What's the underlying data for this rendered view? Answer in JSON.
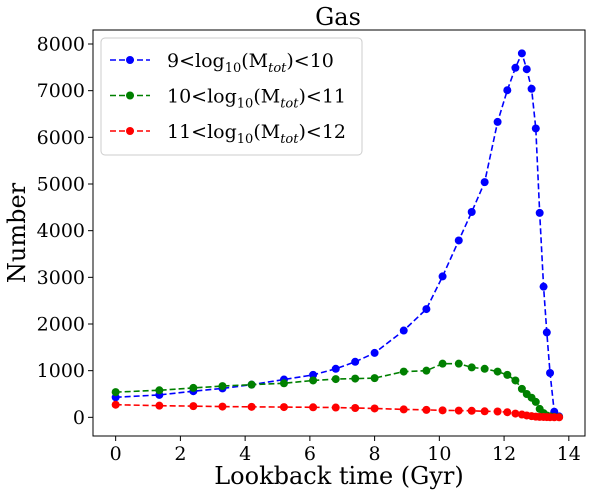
{
  "chart_data": {
    "type": "line",
    "title": "Gas",
    "xlabel": "Lookback time (Gyr)",
    "ylabel": "Number",
    "xlim": [
      -0.7,
      14.5
    ],
    "ylim": [
      -400,
      8300
    ],
    "xticks": [
      0,
      2,
      4,
      6,
      8,
      10,
      12,
      14
    ],
    "yticks": [
      0,
      1000,
      2000,
      3000,
      4000,
      5000,
      6000,
      7000,
      8000
    ],
    "legend_position": "top-left",
    "grid": false,
    "series": [
      {
        "name": "9<log10(Mtot)<10",
        "legend": {
          "prefix": "9<log",
          "sub": "10",
          "mid": "(M",
          "sub2": "tot",
          "suffix": ")<10"
        },
        "color": "#0000ff",
        "x": [
          0.0,
          1.35,
          2.4,
          3.3,
          4.2,
          5.2,
          6.1,
          6.8,
          7.4,
          8.0,
          8.9,
          9.6,
          10.1,
          10.6,
          11.0,
          11.4,
          11.8,
          12.1,
          12.35,
          12.55,
          12.7,
          12.85,
          12.98,
          13.1,
          13.22,
          13.32,
          13.42,
          13.55,
          13.7
        ],
        "y": [
          430,
          480,
          560,
          620,
          700,
          810,
          910,
          1040,
          1190,
          1380,
          1860,
          2320,
          3020,
          3790,
          4400,
          5040,
          6330,
          7010,
          7490,
          7800,
          7460,
          7040,
          6190,
          4380,
          2800,
          1820,
          950,
          120,
          20
        ]
      },
      {
        "name": "10<log10(Mtot)<11",
        "legend": {
          "prefix": "10<log",
          "sub": "10",
          "mid": "(M",
          "sub2": "tot",
          "suffix": ")<11"
        },
        "color": "#008000",
        "x": [
          0.0,
          1.35,
          2.4,
          3.3,
          4.2,
          5.2,
          6.1,
          6.8,
          7.4,
          8.0,
          8.9,
          9.6,
          10.1,
          10.6,
          11.0,
          11.4,
          11.8,
          12.1,
          12.35,
          12.55,
          12.7,
          12.85,
          12.98,
          13.1,
          13.22,
          13.32,
          13.42,
          13.55,
          13.7
        ],
        "y": [
          540,
          580,
          630,
          670,
          700,
          730,
          790,
          820,
          830,
          840,
          980,
          1000,
          1150,
          1150,
          1070,
          1040,
          980,
          910,
          790,
          610,
          500,
          420,
          330,
          180,
          90,
          40,
          20,
          10,
          5
        ]
      },
      {
        "name": "11<log10(Mtot)<12",
        "legend": {
          "prefix": "11<log",
          "sub": "10",
          "mid": "(M",
          "sub2": "tot",
          "suffix": ")<12"
        },
        "color": "#ff0000",
        "x": [
          0.0,
          1.35,
          2.4,
          3.3,
          4.2,
          5.2,
          6.1,
          6.8,
          7.4,
          8.0,
          8.9,
          9.6,
          10.1,
          10.6,
          11.0,
          11.4,
          11.8,
          12.1,
          12.35,
          12.55,
          12.7,
          12.85,
          12.98,
          13.1,
          13.22,
          13.32,
          13.42,
          13.55,
          13.7
        ],
        "y": [
          270,
          250,
          240,
          230,
          225,
          220,
          215,
          210,
          200,
          190,
          170,
          160,
          150,
          145,
          140,
          130,
          125,
          110,
          80,
          60,
          40,
          25,
          15,
          10,
          8,
          5,
          3,
          2,
          1
        ]
      }
    ]
  }
}
